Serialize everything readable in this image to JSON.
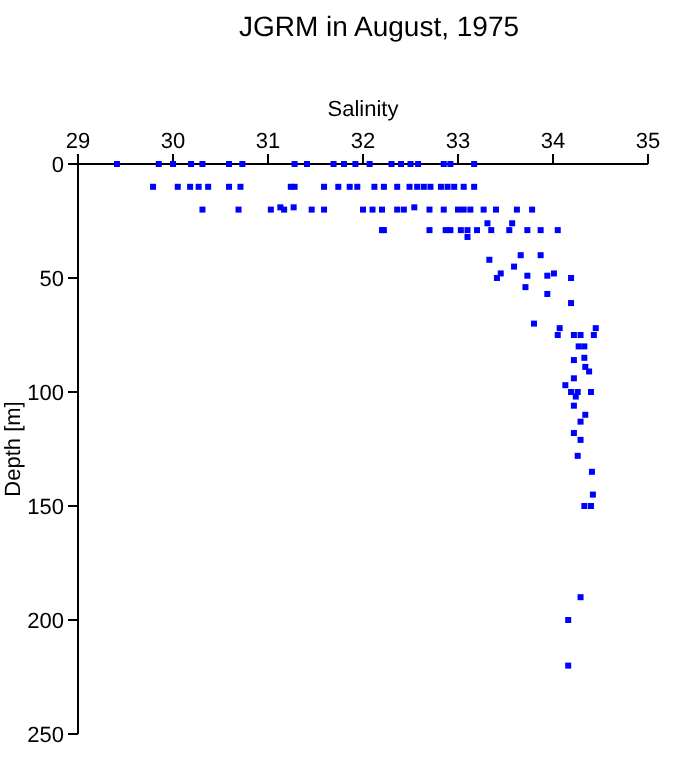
{
  "chart_data": {
    "type": "scatter",
    "title": "JGRM in August, 1975",
    "xlabel": "Salinity",
    "ylabel": "Depth [m]",
    "xlim": [
      29,
      35
    ],
    "xticks": [
      29,
      30,
      31,
      32,
      33,
      34,
      35
    ],
    "ylim": [
      250,
      0
    ],
    "yticks": [
      0,
      50,
      100,
      150,
      200,
      250
    ],
    "marker": "square",
    "series": [
      {
        "color": "#0000ff",
        "x": [
          29.41,
          29.85,
          30.0,
          30.19,
          30.31,
          30.59,
          30.73,
          31.28,
          31.41,
          31.69,
          31.8,
          31.92,
          32.07,
          32.3,
          32.4,
          32.5,
          32.58,
          32.85,
          32.92,
          33.17,
          29.79,
          30.05,
          30.18,
          30.27,
          30.37,
          30.59,
          30.71,
          31.24,
          31.28,
          31.59,
          31.74,
          31.86,
          31.94,
          32.12,
          32.22,
          32.36,
          32.49,
          32.57,
          32.64,
          32.71,
          32.82,
          32.89,
          32.96,
          33.06,
          33.17,
          30.31,
          30.69,
          31.03,
          31.13,
          31.17,
          31.27,
          31.46,
          31.59,
          32.0,
          32.1,
          32.2,
          32.36,
          32.43,
          32.54,
          32.7,
          32.85,
          33.0,
          33.06,
          33.13,
          33.27,
          33.4,
          33.62,
          33.78,
          32.2,
          32.22,
          32.7,
          32.87,
          32.92,
          33.03,
          33.1,
          33.2,
          33.35,
          33.54,
          33.73,
          33.87,
          34.05,
          33.31,
          33.57,
          33.1,
          33.33,
          33.66,
          33.87,
          33.59,
          33.45,
          33.41,
          33.73,
          33.94,
          34.01,
          34.19,
          33.71,
          33.94,
          34.19,
          33.8,
          34.07,
          34.45,
          34.05,
          34.22,
          34.29,
          34.43,
          34.27,
          34.33,
          34.33,
          34.22,
          34.34,
          34.38,
          34.22,
          34.13,
          34.26,
          34.4,
          34.19,
          34.24,
          34.22,
          34.34,
          34.29,
          34.22,
          34.29,
          34.26,
          34.41,
          34.42,
          34.33,
          34.4,
          34.29,
          34.16,
          34.16
        ],
        "values": [
          0,
          0,
          0,
          0,
          0,
          0,
          0,
          0,
          0,
          0,
          0,
          0,
          0,
          0,
          0,
          0,
          0,
          0,
          0,
          0,
          10,
          10,
          10,
          10,
          10,
          10,
          10,
          10,
          10,
          10,
          10,
          10,
          10,
          10,
          10,
          10,
          10,
          10,
          10,
          10,
          10,
          10,
          10,
          10,
          10,
          20,
          20,
          20,
          19,
          20,
          19,
          20,
          20,
          20,
          20,
          20,
          20,
          20,
          19,
          20,
          20,
          20,
          20,
          20,
          20,
          20,
          20,
          20,
          29,
          29,
          29,
          29,
          29,
          29,
          29,
          29,
          29,
          29,
          29,
          29,
          29,
          26,
          26,
          32,
          42,
          40,
          40,
          45,
          48,
          50,
          49,
          49,
          48,
          50,
          54,
          57,
          61,
          70,
          72,
          72,
          75,
          75,
          75,
          75,
          80,
          80,
          85,
          86,
          89,
          91,
          94,
          97,
          100,
          100,
          100,
          102,
          106,
          110,
          113,
          118,
          121,
          128,
          135,
          145,
          150,
          150,
          190,
          200,
          220
        ]
      }
    ]
  }
}
